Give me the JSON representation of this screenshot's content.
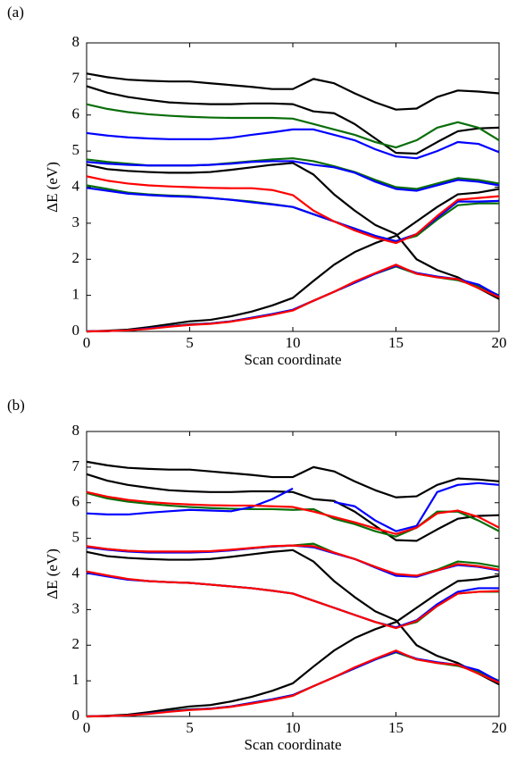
{
  "chart_data": [
    {
      "type": "line",
      "label": "(a)",
      "x_label": "Scan coordinate",
      "y_label": "ΔE (eV)",
      "x": [
        0,
        1,
        2,
        3,
        4,
        5,
        6,
        7,
        8,
        9,
        10,
        11,
        12,
        13,
        14,
        15,
        16,
        17,
        18,
        19,
        20
      ],
      "xlim": [
        0,
        20
      ],
      "ylim": [
        0,
        8
      ],
      "xticks": [
        0,
        5,
        10,
        15,
        20
      ],
      "yticks": [
        0,
        1,
        2,
        3,
        4,
        5,
        6,
        7,
        8
      ],
      "series": [
        {
          "color": "#000000",
          "values": [
            7.15,
            7.05,
            6.98,
            6.95,
            6.93,
            6.93,
            6.88,
            6.83,
            6.78,
            6.72,
            6.72,
            7.0,
            6.88,
            6.6,
            6.35,
            6.15,
            6.18,
            6.5,
            6.68,
            6.65,
            6.6
          ]
        },
        {
          "color": "#000000",
          "values": [
            6.8,
            6.62,
            6.5,
            6.42,
            6.35,
            6.32,
            6.3,
            6.3,
            6.32,
            6.32,
            6.3,
            6.1,
            6.05,
            5.75,
            5.35,
            4.95,
            4.93,
            5.25,
            5.55,
            5.63,
            5.65
          ]
        },
        {
          "color": "#000000",
          "values": [
            4.62,
            4.5,
            4.45,
            4.42,
            4.4,
            4.4,
            4.42,
            4.48,
            4.55,
            4.62,
            4.67,
            4.35,
            3.8,
            3.35,
            2.95,
            2.7,
            2.0,
            1.7,
            1.5,
            1.2,
            0.9
          ]
        },
        {
          "color": "#000000",
          "values": [
            0,
            0.02,
            0.05,
            0.12,
            0.2,
            0.28,
            0.32,
            0.42,
            0.55,
            0.72,
            0.93,
            1.4,
            1.85,
            2.2,
            2.45,
            2.65,
            3.05,
            3.45,
            3.8,
            3.85,
            3.95
          ]
        },
        {
          "color": "#0a6e0a",
          "values": [
            6.3,
            6.17,
            6.08,
            6.02,
            5.98,
            5.95,
            5.93,
            5.92,
            5.92,
            5.92,
            5.9,
            5.75,
            5.6,
            5.45,
            5.25,
            5.1,
            5.3,
            5.65,
            5.8,
            5.65,
            5.3
          ]
        },
        {
          "color": "#0a6e0a",
          "values": [
            4.77,
            4.7,
            4.65,
            4.6,
            4.6,
            4.6,
            4.62,
            4.67,
            4.72,
            4.77,
            4.8,
            4.72,
            4.58,
            4.42,
            4.2,
            4.0,
            3.95,
            4.1,
            4.25,
            4.2,
            4.1
          ]
        },
        {
          "color": "#0a6e0a",
          "values": [
            4.05,
            3.95,
            3.85,
            3.8,
            3.77,
            3.75,
            3.7,
            3.65,
            3.6,
            3.53,
            3.45,
            3.25,
            3.05,
            2.85,
            2.65,
            2.5,
            2.65,
            3.1,
            3.5,
            3.55,
            3.55
          ]
        },
        {
          "color": "#0a6e0a",
          "values": [
            0,
            0.01,
            0.03,
            0.08,
            0.15,
            0.2,
            0.22,
            0.28,
            0.38,
            0.48,
            0.6,
            0.85,
            1.1,
            1.35,
            1.6,
            1.8,
            1.6,
            1.5,
            1.42,
            1.25,
            1.0
          ]
        },
        {
          "color": "#0000ff",
          "values": [
            5.5,
            5.43,
            5.38,
            5.35,
            5.33,
            5.33,
            5.33,
            5.37,
            5.45,
            5.52,
            5.6,
            5.6,
            5.45,
            5.3,
            5.05,
            4.85,
            4.8,
            5.0,
            5.25,
            5.2,
            4.97
          ]
        },
        {
          "color": "#0000ff",
          "values": [
            4.7,
            4.65,
            4.62,
            4.6,
            4.6,
            4.6,
            4.62,
            4.65,
            4.7,
            4.72,
            4.72,
            4.62,
            4.55,
            4.4,
            4.15,
            3.95,
            3.9,
            4.05,
            4.2,
            4.15,
            4.05
          ]
        },
        {
          "color": "#0000ff",
          "values": [
            3.98,
            3.9,
            3.82,
            3.78,
            3.75,
            3.73,
            3.7,
            3.65,
            3.58,
            3.52,
            3.45,
            3.25,
            3.05,
            2.85,
            2.65,
            2.5,
            2.7,
            3.15,
            3.6,
            3.6,
            3.62
          ]
        },
        {
          "color": "#0000ff",
          "values": [
            0,
            0.01,
            0.03,
            0.08,
            0.14,
            0.19,
            0.22,
            0.28,
            0.38,
            0.48,
            0.6,
            0.85,
            1.1,
            1.35,
            1.6,
            1.82,
            1.62,
            1.52,
            1.45,
            1.3,
            0.98
          ]
        },
        {
          "color": "#ff0000",
          "values": [
            4.3,
            4.18,
            4.1,
            4.05,
            4.02,
            4.0,
            3.98,
            3.97,
            3.97,
            3.92,
            3.78,
            3.35,
            3.05,
            2.8,
            2.6,
            2.45,
            2.7,
            3.2,
            3.65,
            3.7,
            3.75
          ]
        },
        {
          "color": "#ff0000",
          "values": [
            0,
            0.01,
            0.03,
            0.07,
            0.13,
            0.18,
            0.21,
            0.27,
            0.36,
            0.46,
            0.58,
            0.85,
            1.1,
            1.38,
            1.62,
            1.85,
            1.6,
            1.5,
            1.45,
            1.2,
            0.95
          ]
        }
      ]
    },
    {
      "type": "line",
      "label": "(b)",
      "x_label": "Scan coordinate",
      "y_label": "ΔE (eV)",
      "x": [
        0,
        1,
        2,
        3,
        4,
        5,
        6,
        7,
        8,
        9,
        10,
        11,
        12,
        13,
        14,
        15,
        16,
        17,
        18,
        19,
        20
      ],
      "xlim": [
        0,
        20
      ],
      "ylim": [
        0,
        8
      ],
      "xticks": [
        0,
        5,
        10,
        15,
        20
      ],
      "yticks": [
        0,
        1,
        2,
        3,
        4,
        5,
        6,
        7,
        8
      ],
      "series": [
        {
          "color": "#000000",
          "values": [
            7.15,
            7.05,
            6.98,
            6.95,
            6.93,
            6.93,
            6.88,
            6.83,
            6.78,
            6.72,
            6.72,
            7.0,
            6.88,
            6.6,
            6.35,
            6.15,
            6.18,
            6.5,
            6.68,
            6.65,
            6.6
          ]
        },
        {
          "color": "#000000",
          "values": [
            6.8,
            6.62,
            6.5,
            6.42,
            6.35,
            6.32,
            6.3,
            6.3,
            6.32,
            6.32,
            6.3,
            6.1,
            6.05,
            5.75,
            5.35,
            4.95,
            4.93,
            5.25,
            5.55,
            5.63,
            5.65
          ]
        },
        {
          "color": "#000000",
          "values": [
            4.62,
            4.5,
            4.45,
            4.42,
            4.4,
            4.4,
            4.42,
            4.48,
            4.55,
            4.62,
            4.67,
            4.35,
            3.8,
            3.35,
            2.95,
            2.7,
            2.0,
            1.7,
            1.5,
            1.2,
            0.9
          ]
        },
        {
          "color": "#000000",
          "values": [
            0,
            0.02,
            0.05,
            0.12,
            0.2,
            0.28,
            0.32,
            0.42,
            0.55,
            0.72,
            0.93,
            1.4,
            1.85,
            2.2,
            2.45,
            2.65,
            3.05,
            3.45,
            3.8,
            3.85,
            3.95
          ]
        },
        {
          "color": "#0a6e0a",
          "values": [
            6.27,
            6.12,
            6.03,
            5.97,
            5.92,
            5.88,
            5.85,
            5.83,
            5.82,
            5.82,
            5.8,
            5.82,
            5.55,
            5.4,
            5.2,
            5.05,
            5.3,
            5.75,
            5.75,
            5.5,
            5.2
          ]
        },
        {
          "color": "#0a6e0a",
          "values": [
            4.77,
            4.7,
            4.65,
            4.62,
            4.62,
            4.62,
            4.63,
            4.67,
            4.72,
            4.77,
            4.8,
            4.85,
            4.6,
            4.42,
            4.2,
            3.98,
            3.95,
            4.12,
            4.35,
            4.3,
            4.2
          ]
        },
        {
          "color": "#0a6e0a",
          "values": [
            4.05,
            3.95,
            3.85,
            3.8,
            3.77,
            3.75,
            3.7,
            3.65,
            3.6,
            3.53,
            3.45,
            3.25,
            3.05,
            2.85,
            2.65,
            2.5,
            2.65,
            3.1,
            3.45,
            3.5,
            3.5
          ]
        },
        {
          "color": "#0a6e0a",
          "values": [
            0,
            0.01,
            0.03,
            0.08,
            0.15,
            0.2,
            0.22,
            0.28,
            0.38,
            0.48,
            0.6,
            0.85,
            1.1,
            1.35,
            1.6,
            1.8,
            1.6,
            1.5,
            1.42,
            1.25,
            1.0
          ]
        },
        {
          "color": "#0000ff",
          "values": [
            5.7,
            5.67,
            5.67,
            5.72,
            5.76,
            5.8,
            5.78,
            5.76,
            5.88,
            6.1,
            6.4,
            null,
            6.02,
            5.9,
            5.5,
            5.2,
            5.35,
            6.3,
            6.5,
            6.55,
            6.5
          ]
        },
        {
          "color": "#0000ff",
          "values": [
            4.75,
            4.68,
            4.63,
            4.6,
            4.6,
            4.6,
            4.62,
            4.66,
            4.72,
            4.77,
            4.8,
            4.75,
            4.58,
            4.42,
            4.18,
            3.95,
            3.92,
            4.1,
            4.25,
            4.2,
            4.1
          ]
        },
        {
          "color": "#0000ff",
          "values": [
            4.03,
            3.93,
            3.84,
            3.8,
            3.77,
            3.75,
            3.7,
            3.65,
            3.6,
            3.53,
            3.45,
            3.25,
            3.05,
            2.85,
            2.65,
            2.5,
            2.7,
            3.15,
            3.5,
            3.6,
            3.6
          ]
        },
        {
          "color": "#0000ff",
          "values": [
            0,
            0.01,
            0.03,
            0.08,
            0.14,
            0.19,
            0.22,
            0.28,
            0.38,
            0.48,
            0.6,
            0.85,
            1.1,
            1.35,
            1.6,
            1.82,
            1.62,
            1.52,
            1.45,
            1.3,
            0.98
          ]
        },
        {
          "color": "#ff0000",
          "values": [
            6.3,
            6.17,
            6.08,
            6.02,
            5.98,
            5.95,
            5.93,
            5.92,
            5.92,
            5.9,
            5.88,
            5.75,
            5.6,
            5.45,
            5.28,
            5.12,
            5.3,
            5.7,
            5.78,
            5.6,
            5.3
          ]
        },
        {
          "color": "#ff0000",
          "values": [
            4.78,
            4.7,
            4.65,
            4.63,
            4.63,
            4.63,
            4.64,
            4.68,
            4.73,
            4.78,
            4.8,
            4.78,
            4.6,
            4.42,
            4.2,
            4.0,
            3.95,
            4.1,
            4.28,
            4.22,
            4.12
          ]
        },
        {
          "color": "#ff0000",
          "values": [
            4.07,
            3.96,
            3.86,
            3.8,
            3.77,
            3.75,
            3.7,
            3.65,
            3.6,
            3.53,
            3.45,
            3.25,
            3.05,
            2.85,
            2.65,
            2.48,
            2.68,
            3.1,
            3.45,
            3.5,
            3.52
          ]
        },
        {
          "color": "#ff0000",
          "values": [
            0,
            0.01,
            0.03,
            0.07,
            0.13,
            0.18,
            0.21,
            0.27,
            0.36,
            0.46,
            0.58,
            0.85,
            1.1,
            1.38,
            1.62,
            1.85,
            1.6,
            1.5,
            1.45,
            1.2,
            0.95
          ]
        }
      ]
    }
  ]
}
